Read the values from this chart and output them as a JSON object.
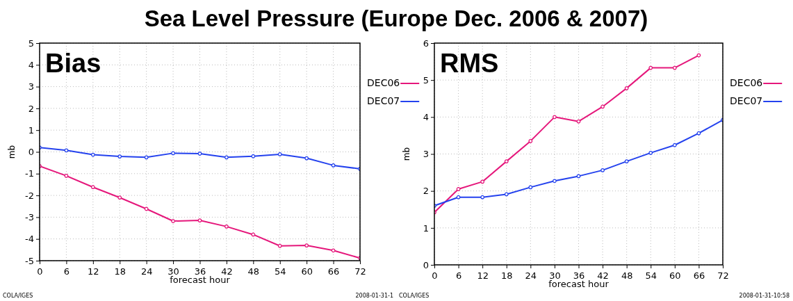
{
  "chart_data": [
    {
      "type": "line",
      "title": "Sea Level Pressure (Europe Dec. 2006 & 2007)",
      "subtitle": "Bias",
      "xlabel": "forecast hour",
      "ylabel": "mb",
      "x": [
        0,
        6,
        12,
        18,
        24,
        30,
        36,
        42,
        48,
        54,
        60,
        66,
        72
      ],
      "xlim": [
        0,
        72
      ],
      "xticks": [
        0,
        6,
        12,
        18,
        24,
        30,
        36,
        42,
        48,
        54,
        60,
        66,
        72
      ],
      "ylim": [
        -5,
        5
      ],
      "yticks": [
        -5,
        -4,
        -3,
        -2,
        -1,
        0,
        1,
        2,
        3,
        4,
        5
      ],
      "series": [
        {
          "name": "DEC06",
          "color": "#e5177b",
          "values": [
            -0.65,
            -1.1,
            -1.62,
            -2.1,
            -2.62,
            -3.18,
            -3.15,
            -3.43,
            -3.8,
            -4.32,
            -4.3,
            -4.53,
            -4.88
          ]
        },
        {
          "name": "DEC07",
          "color": "#2442ee",
          "values": [
            0.2,
            0.07,
            -0.13,
            -0.21,
            -0.25,
            -0.06,
            -0.08,
            -0.25,
            -0.2,
            -0.11,
            -0.29,
            -0.62,
            -0.78
          ]
        }
      ],
      "grid": true,
      "legend": "right",
      "marker": "circle",
      "annotations": [
        "COLA/IGES",
        "2008-01-31-1"
      ]
    },
    {
      "type": "line",
      "subtitle": "RMS",
      "xlabel": "forecast hour",
      "ylabel": "mb",
      "x": [
        0,
        6,
        12,
        18,
        24,
        30,
        36,
        42,
        48,
        54,
        60,
        66,
        72
      ],
      "xlim": [
        0,
        72
      ],
      "xticks": [
        0,
        6,
        12,
        18,
        24,
        30,
        36,
        42,
        48,
        54,
        60,
        66,
        72
      ],
      "ylim": [
        0,
        6
      ],
      "yticks": [
        0,
        1,
        2,
        3,
        4,
        5,
        6
      ],
      "series": [
        {
          "name": "DEC06",
          "color": "#e5177b",
          "values": [
            1.42,
            2.05,
            2.25,
            2.8,
            3.35,
            4.0,
            3.88,
            4.28,
            4.78,
            5.33,
            5.33,
            5.67,
            null
          ]
        },
        {
          "name": "DEC07",
          "color": "#2442ee",
          "values": [
            1.6,
            1.83,
            1.83,
            1.91,
            2.1,
            2.27,
            2.4,
            2.56,
            2.8,
            3.03,
            3.24,
            3.56,
            3.92
          ]
        }
      ],
      "grid": true,
      "legend": "right",
      "marker": "circle",
      "annotations": [
        "COLA/IGES",
        "2008-01-31-10:58"
      ]
    }
  ]
}
